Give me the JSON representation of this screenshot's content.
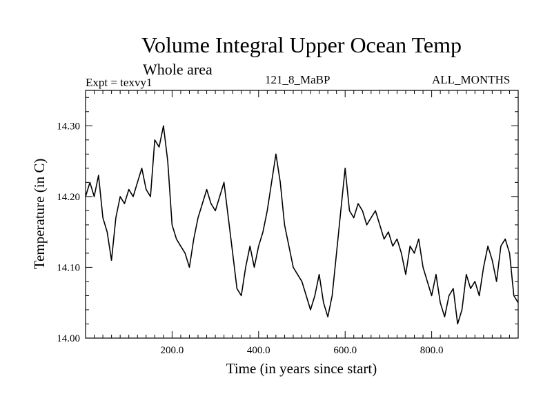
{
  "chart_data": {
    "type": "line",
    "title": "Volume Integral Upper Ocean Temp",
    "subtitle": "Whole area",
    "experiment": "Expt = texvy1",
    "run_label": "121_8_MaBP",
    "months_label": "ALL_MONTHS",
    "xlabel": "Time (in years since start)",
    "ylabel": "Temperature (in C)",
    "xlim": [
      0,
      1000
    ],
    "ylim": [
      14.0,
      14.35
    ],
    "x_ticks": [
      200,
      400,
      600,
      800
    ],
    "x_tick_labels": [
      "200.0",
      "400.0",
      "600.0",
      "800.0"
    ],
    "y_ticks": [
      14.0,
      14.1,
      14.2,
      14.3
    ],
    "y_tick_labels": [
      "14.00",
      "14.10",
      "14.20",
      "14.30"
    ],
    "grid": false,
    "series": [
      {
        "name": "texvy1",
        "x": [
          0,
          10,
          20,
          30,
          40,
          50,
          60,
          70,
          80,
          90,
          100,
          110,
          120,
          130,
          140,
          150,
          160,
          170,
          180,
          190,
          200,
          210,
          220,
          230,
          240,
          250,
          260,
          270,
          280,
          290,
          300,
          310,
          320,
          330,
          340,
          350,
          360,
          370,
          380,
          390,
          400,
          410,
          420,
          430,
          440,
          450,
          460,
          470,
          480,
          490,
          500,
          510,
          520,
          530,
          540,
          550,
          560,
          570,
          580,
          590,
          600,
          610,
          620,
          630,
          640,
          650,
          660,
          670,
          680,
          690,
          700,
          710,
          720,
          730,
          740,
          750,
          760,
          770,
          780,
          790,
          800,
          810,
          820,
          830,
          840,
          850,
          860,
          870,
          880,
          890,
          900,
          910,
          920,
          930,
          940,
          950,
          960,
          970,
          980,
          990,
          1000
        ],
        "values": [
          14.2,
          14.22,
          14.2,
          14.23,
          14.17,
          14.15,
          14.11,
          14.17,
          14.2,
          14.19,
          14.21,
          14.2,
          14.22,
          14.24,
          14.21,
          14.2,
          14.28,
          14.27,
          14.3,
          14.25,
          14.16,
          14.14,
          14.13,
          14.12,
          14.1,
          14.14,
          14.17,
          14.19,
          14.21,
          14.19,
          14.18,
          14.2,
          14.22,
          14.17,
          14.12,
          14.07,
          14.06,
          14.1,
          14.13,
          14.1,
          14.13,
          14.15,
          14.18,
          14.22,
          14.26,
          14.22,
          14.16,
          14.13,
          14.1,
          14.09,
          14.08,
          14.06,
          14.04,
          14.06,
          14.09,
          14.05,
          14.03,
          14.06,
          14.12,
          14.18,
          14.24,
          14.18,
          14.17,
          14.19,
          14.18,
          14.16,
          14.17,
          14.18,
          14.16,
          14.14,
          14.15,
          14.13,
          14.14,
          14.12,
          14.09,
          14.13,
          14.12,
          14.14,
          14.1,
          14.08,
          14.06,
          14.09,
          14.05,
          14.03,
          14.06,
          14.07,
          14.02,
          14.04,
          14.09,
          14.07,
          14.08,
          14.06,
          14.1,
          14.13,
          14.11,
          14.08,
          14.13,
          14.14,
          14.12,
          14.06,
          14.05
        ]
      }
    ]
  }
}
